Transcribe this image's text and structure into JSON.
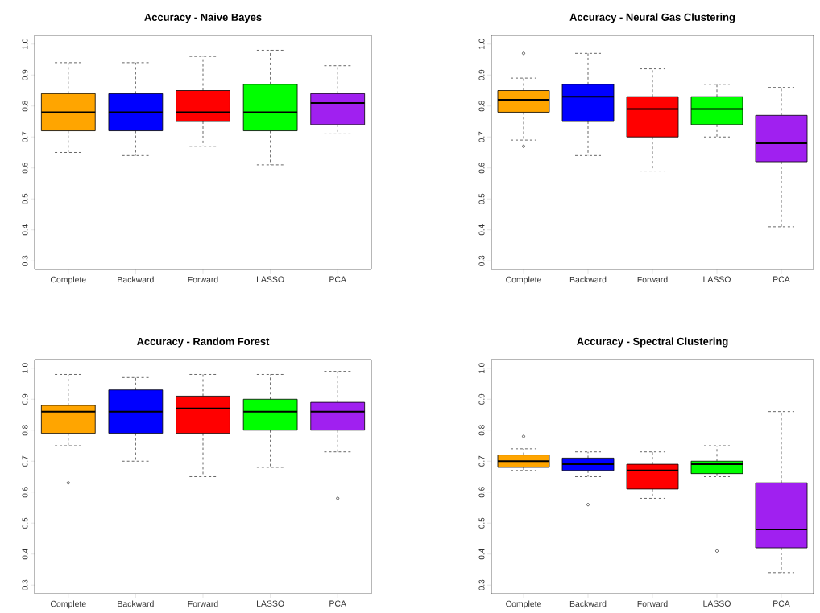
{
  "chart_data": [
    {
      "type": "box",
      "title": "Accuracy - Naive Bayes",
      "categories": [
        "Complete",
        "Backward",
        "Forward",
        "LASSO",
        "PCA"
      ],
      "colors": [
        "#ffa500",
        "#0000ff",
        "#ff0000",
        "#00ff00",
        "#a020f0"
      ],
      "boxes": [
        {
          "low": 0.65,
          "q1": 0.72,
          "median": 0.78,
          "q3": 0.84,
          "high": 0.94
        },
        {
          "low": 0.64,
          "q1": 0.72,
          "median": 0.78,
          "q3": 0.84,
          "high": 0.94
        },
        {
          "low": 0.67,
          "q1": 0.75,
          "median": 0.78,
          "q3": 0.85,
          "high": 0.96
        },
        {
          "low": 0.61,
          "q1": 0.72,
          "median": 0.78,
          "q3": 0.87,
          "high": 0.98
        },
        {
          "low": 0.71,
          "q1": 0.74,
          "median": 0.81,
          "q3": 0.84,
          "high": 0.93
        }
      ],
      "ylim": [
        0.272,
        1.028
      ],
      "yticks": [
        {
          "value": 0.3,
          "label": "0.3"
        },
        {
          "value": 0.4,
          "label": "0.4"
        },
        {
          "value": 0.5,
          "label": "0.5"
        },
        {
          "value": 0.6,
          "label": "0.6"
        },
        {
          "value": 0.7,
          "label": "0.7"
        },
        {
          "value": 0.8,
          "label": "0.8"
        },
        {
          "value": 0.9,
          "label": "0.9"
        },
        {
          "value": 1.0,
          "label": "1.0"
        }
      ]
    },
    {
      "type": "box",
      "title": "Accuracy - Neural Gas Clustering",
      "categories": [
        "Complete",
        "Backward",
        "Forward",
        "LASSO",
        "PCA"
      ],
      "colors": [
        "#ffa500",
        "#0000ff",
        "#ff0000",
        "#00ff00",
        "#a020f0"
      ],
      "boxes": [
        {
          "low": 0.69,
          "q1": 0.78,
          "median": 0.82,
          "q3": 0.85,
          "high": 0.89,
          "outliers": [
            0.97,
            0.67
          ]
        },
        {
          "low": 0.64,
          "q1": 0.75,
          "median": 0.83,
          "q3": 0.87,
          "high": 0.97
        },
        {
          "low": 0.59,
          "q1": 0.7,
          "median": 0.79,
          "q3": 0.83,
          "high": 0.92
        },
        {
          "low": 0.7,
          "q1": 0.74,
          "median": 0.79,
          "q3": 0.83,
          "high": 0.87
        },
        {
          "low": 0.41,
          "q1": 0.62,
          "median": 0.68,
          "q3": 0.77,
          "high": 0.86
        }
      ],
      "ylim": [
        0.272,
        1.028
      ],
      "yticks": [
        {
          "value": 0.3,
          "label": "0.3"
        },
        {
          "value": 0.4,
          "label": "0.4"
        },
        {
          "value": 0.5,
          "label": "0.5"
        },
        {
          "value": 0.6,
          "label": "0.6"
        },
        {
          "value": 0.7,
          "label": "0.7"
        },
        {
          "value": 0.8,
          "label": "0.8"
        },
        {
          "value": 0.9,
          "label": "0.9"
        },
        {
          "value": 1.0,
          "label": "1.0"
        }
      ]
    },
    {
      "type": "box",
      "title": "Accuracy - Random Forest",
      "categories": [
        "Complete",
        "Backward",
        "Forward",
        "LASSO",
        "PCA"
      ],
      "colors": [
        "#ffa500",
        "#0000ff",
        "#ff0000",
        "#00ff00",
        "#a020f0"
      ],
      "boxes": [
        {
          "low": 0.75,
          "q1": 0.79,
          "median": 0.86,
          "q3": 0.88,
          "high": 0.98,
          "outliers": [
            0.63
          ]
        },
        {
          "low": 0.7,
          "q1": 0.79,
          "median": 0.86,
          "q3": 0.93,
          "high": 0.97
        },
        {
          "low": 0.65,
          "q1": 0.79,
          "median": 0.87,
          "q3": 0.91,
          "high": 0.98
        },
        {
          "low": 0.68,
          "q1": 0.8,
          "median": 0.86,
          "q3": 0.9,
          "high": 0.98
        },
        {
          "low": 0.73,
          "q1": 0.8,
          "median": 0.86,
          "q3": 0.89,
          "high": 0.99,
          "outliers": [
            0.58
          ]
        }
      ],
      "ylim": [
        0.272,
        1.028
      ],
      "yticks": [
        {
          "value": 0.3,
          "label": "0.3"
        },
        {
          "value": 0.4,
          "label": "0.4"
        },
        {
          "value": 0.5,
          "label": "0.5"
        },
        {
          "value": 0.6,
          "label": "0.6"
        },
        {
          "value": 0.7,
          "label": "0.7"
        },
        {
          "value": 0.8,
          "label": "0.8"
        },
        {
          "value": 0.9,
          "label": "0.9"
        },
        {
          "value": 1.0,
          "label": "1.0"
        }
      ]
    },
    {
      "type": "box",
      "title": "Accuracy - Spectral Clustering",
      "categories": [
        "Complete",
        "Backward",
        "Forward",
        "LASSO",
        "PCA"
      ],
      "colors": [
        "#ffa500",
        "#0000ff",
        "#ff0000",
        "#00ff00",
        "#a020f0"
      ],
      "boxes": [
        {
          "low": 0.67,
          "q1": 0.68,
          "median": 0.7,
          "q3": 0.72,
          "high": 0.74,
          "outliers": [
            0.78
          ]
        },
        {
          "low": 0.65,
          "q1": 0.67,
          "median": 0.69,
          "q3": 0.71,
          "high": 0.73,
          "outliers": [
            0.56
          ]
        },
        {
          "low": 0.58,
          "q1": 0.61,
          "median": 0.67,
          "q3": 0.69,
          "high": 0.73
        },
        {
          "low": 0.65,
          "q1": 0.66,
          "median": 0.69,
          "q3": 0.7,
          "high": 0.75,
          "outliers": [
            0.41
          ]
        },
        {
          "low": 0.34,
          "q1": 0.42,
          "median": 0.48,
          "q3": 0.63,
          "high": 0.86
        }
      ],
      "ylim": [
        0.272,
        1.028
      ],
      "yticks": [
        {
          "value": 0.3,
          "label": "0.3"
        },
        {
          "value": 0.4,
          "label": "0.4"
        },
        {
          "value": 0.5,
          "label": "0.5"
        },
        {
          "value": 0.6,
          "label": "0.6"
        },
        {
          "value": 0.7,
          "label": "0.7"
        },
        {
          "value": 0.8,
          "label": "0.8"
        },
        {
          "value": 0.9,
          "label": "0.9"
        },
        {
          "value": 1.0,
          "label": "1.0"
        }
      ]
    }
  ]
}
